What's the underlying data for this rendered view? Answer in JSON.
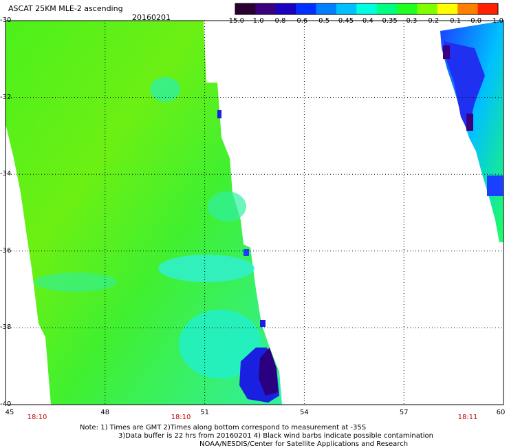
{
  "title": "ASCAT 25KM MLE-2 ascending",
  "date": "20160201",
  "colorbar": {
    "ticks": [
      "-15.0",
      "-1.0",
      "-0.8",
      "-0.6",
      "-0.5",
      "-0.45",
      "-0.4",
      "-0.35",
      "-0.3",
      "-0.2",
      "-0.1",
      "0.0",
      "1.0"
    ],
    "colors": [
      "#2a0030",
      "#3a0080",
      "#1a00c0",
      "#0030ff",
      "#0080ff",
      "#00c0ff",
      "#00ffe0",
      "#00ff80",
      "#20ff20",
      "#80ff00",
      "#ffff00",
      "#ff8000",
      "#ff2000"
    ]
  },
  "axes": {
    "lon_ticks": [
      "45",
      "48",
      "51",
      "54",
      "57",
      "60"
    ],
    "lat_ticks": [
      "-30",
      "-32",
      "-34",
      "-36",
      "-38",
      "-40"
    ],
    "lon_range": [
      45,
      60
    ],
    "lat_range": [
      -40,
      -30
    ]
  },
  "times": [
    "18:10",
    "18:10",
    "18:11"
  ],
  "notes": [
    "Note: 1) Times are GMT 2)Times along bottom correspond to measurement at -35S",
    "3)Data buffer is 22 hrs from 20160201 4) Black wind barbs indicate possible contamination",
    "NOAA/NESDIS/Center for Satellite Applications and Research"
  ]
}
